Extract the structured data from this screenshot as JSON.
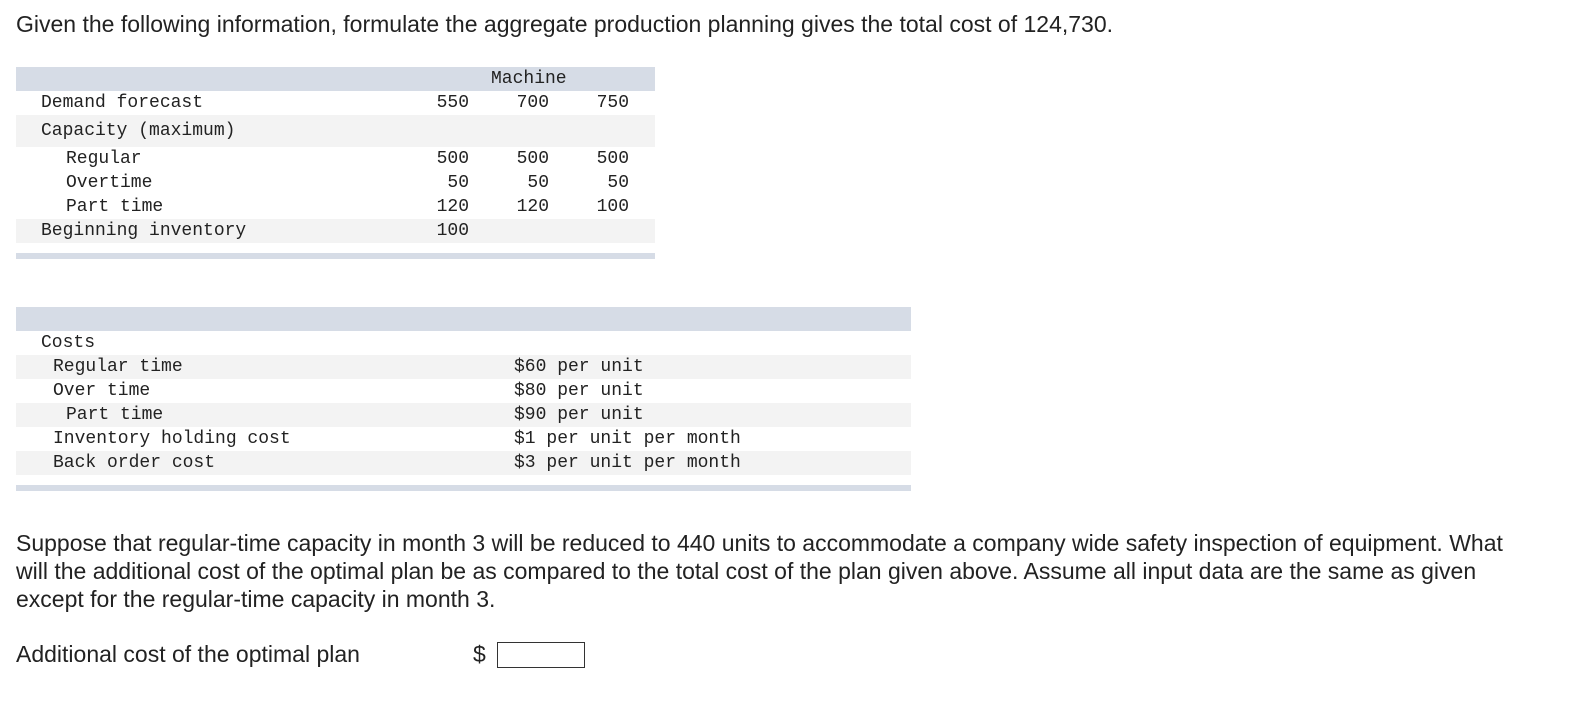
{
  "intro": "Given the following information, formulate the aggregate production planning gives the total cost of 124,730.",
  "capacity_table": {
    "header": "Machine",
    "rows": [
      {
        "label": "Demand forecast",
        "values": [
          "550",
          "700",
          "750"
        ]
      },
      {
        "label": "Capacity (maximum)",
        "values": [
          "",
          "",
          ""
        ]
      },
      {
        "label": "Regular",
        "values": [
          "500",
          "500",
          "500"
        ]
      },
      {
        "label": "Overtime",
        "values": [
          "50",
          "50",
          "50"
        ]
      },
      {
        "label": "Part time",
        "values": [
          "120",
          "120",
          "100"
        ]
      },
      {
        "label": "Beginning inventory",
        "values": [
          "100",
          "",
          ""
        ]
      }
    ]
  },
  "cost_table": {
    "heading": "Costs",
    "rows": [
      {
        "label": "Regular time",
        "value": "$60 per unit"
      },
      {
        "label": "Over time",
        "value": "$80 per unit"
      },
      {
        "label": "Part time",
        "value": "$90 per unit"
      },
      {
        "label": "Inventory holding cost",
        "value": "$1 per unit per month"
      },
      {
        "label": "Back order cost",
        "value": "$3 per unit per month"
      }
    ]
  },
  "question": "Suppose that regular-time capacity in month 3 will be reduced to 440 units to accommodate a company wide safety inspection of equipment. What will the additional cost of the optimal plan be as compared to the total cost of the plan given above. Assume all input data are the same as given except for the regular-time capacity in month 3.",
  "answer": {
    "label": "Additional cost of the optimal plan",
    "currency": "$",
    "value": ""
  }
}
